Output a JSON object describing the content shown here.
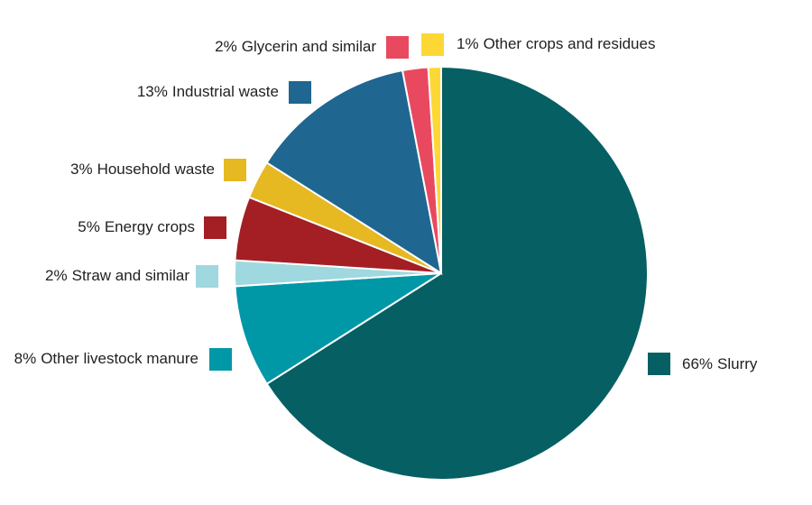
{
  "chart_data": {
    "type": "pie",
    "categories": [
      "Slurry",
      "Other livestock manure",
      "Straw and similar",
      "Energy crops",
      "Household waste",
      "Industrial waste",
      "Glycerin and similar",
      "Other crops and residues"
    ],
    "values": [
      66,
      8,
      2,
      5,
      3,
      13,
      2,
      1
    ],
    "value_labels": [
      "66%",
      "8%",
      "2%",
      "5%",
      "3%",
      "13%",
      "2%",
      "1%"
    ],
    "colors": [
      "#055f63",
      "#0097a7",
      "#9fd8df",
      "#a31f24",
      "#e6b822",
      "#1f6690",
      "#e8495f",
      "#fdd835"
    ]
  }
}
